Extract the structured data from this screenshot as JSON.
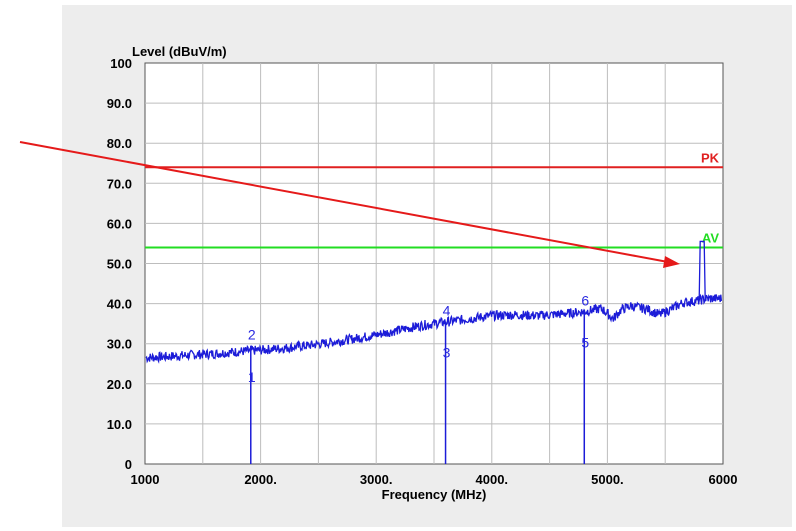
{
  "chart_data": {
    "type": "line",
    "xlabel": "Frequency (MHz)",
    "ylabel": "Level (dBuV/m)",
    "xlim": [
      1000,
      6000
    ],
    "ylim": [
      0,
      100
    ],
    "x_ticks": [
      1000,
      2000,
      3000,
      4000,
      5000,
      6000
    ],
    "x_tick_labels": [
      "1000",
      "2000.",
      "3000.",
      "4000.",
      "5000.",
      "6000"
    ],
    "y_ticks": [
      0,
      10,
      20,
      30,
      40,
      50,
      60,
      70,
      80,
      90,
      100
    ],
    "y_tick_labels": [
      "0",
      "10.0",
      "20.0",
      "30.0",
      "40.0",
      "50.0",
      "60.0",
      "70.0",
      "80.0",
      "90.0",
      "100"
    ],
    "grid": true,
    "limit_lines": [
      {
        "name": "PK",
        "value": 74,
        "color": "#e02020"
      },
      {
        "name": "AV",
        "value": 54,
        "color": "#22dd22"
      }
    ],
    "series": [
      {
        "color": "#1c1cd8",
        "x": [
          1000,
          1200,
          1400,
          1600,
          1800,
          2000,
          2200,
          2400,
          2600,
          2800,
          3000,
          3200,
          3400,
          3600,
          3800,
          4000,
          4200,
          4400,
          4600,
          4800,
          4950,
          5050,
          5120,
          5200,
          5350,
          5450,
          5550,
          5650,
          5800,
          5850,
          6000
        ],
        "y": [
          26.5,
          26.8,
          27.2,
          27.5,
          28.0,
          28.4,
          28.9,
          29.5,
          30.3,
          31.2,
          32.2,
          33.4,
          34.6,
          35.4,
          36.2,
          37.0,
          37.2,
          37.0,
          37.4,
          38.0,
          38.8,
          36.2,
          38.5,
          39.4,
          38.6,
          37.2,
          38.6,
          40.2,
          40.8,
          41.2,
          41.3
        ]
      }
    ],
    "spikes": [
      {
        "x": 1915,
        "y": 29.5
      },
      {
        "x": 3600,
        "y": 35.5
      },
      {
        "x": 4800,
        "y": 38.5
      },
      {
        "x": 5820,
        "y": 55.5
      }
    ],
    "markers": [
      {
        "label": "1",
        "x": 1915,
        "y": 20.5
      },
      {
        "label": "2",
        "x": 1915,
        "y": 31.0
      },
      {
        "label": "3",
        "x": 3600,
        "y": 26.5
      },
      {
        "label": "4",
        "x": 3600,
        "y": 37.0
      },
      {
        "label": "5",
        "x": 4800,
        "y": 29.0
      },
      {
        "label": "6",
        "x": 4800,
        "y": 39.5
      }
    ]
  }
}
